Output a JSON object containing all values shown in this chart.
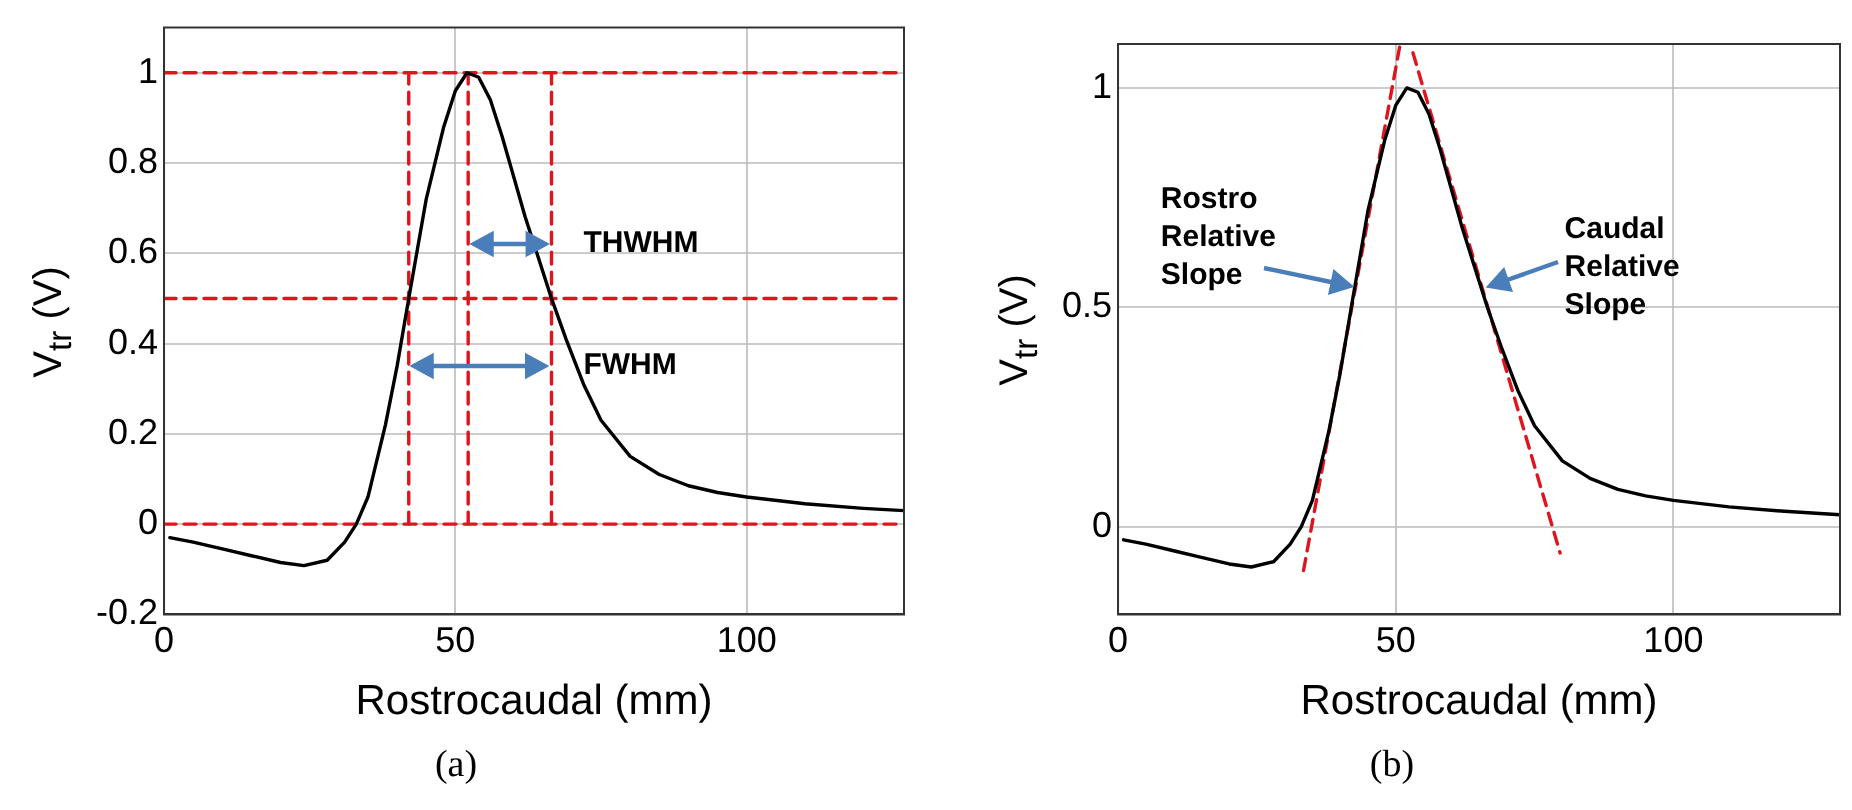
{
  "chart_data": [
    {
      "type": "line",
      "xlabel": "Rostrocaudal (mm)",
      "ylabel": "V$_{tr}$ (V)",
      "x": [
        1,
        5,
        10,
        15,
        20,
        24,
        28,
        31,
        33,
        35,
        38,
        40,
        42,
        45,
        48,
        50,
        52,
        54,
        56,
        58,
        60,
        62,
        64,
        66.5,
        69,
        72,
        75,
        80,
        85,
        90,
        95,
        100,
        110,
        120,
        127
      ],
      "series": [
        {
          "color": "#000000",
          "line_style": "solid",
          "values": [
            -0.03,
            -0.04,
            -0.055,
            -0.07,
            -0.085,
            -0.092,
            -0.08,
            -0.04,
            0.0,
            0.06,
            0.22,
            0.35,
            0.5,
            0.72,
            0.88,
            0.96,
            1.0,
            0.99,
            0.94,
            0.86,
            0.77,
            0.68,
            0.6,
            0.5,
            0.41,
            0.31,
            0.23,
            0.15,
            0.11,
            0.085,
            0.07,
            0.06,
            0.045,
            0.035,
            0.03
          ]
        },
        {
          "color": "#e0141e",
          "line_style": "dashed",
          "x": [
            42,
            42
          ],
          "values": [
            0,
            1
          ]
        },
        {
          "color": "#e0141e",
          "line_style": "dashed",
          "x": [
            52.2,
            52.2
          ],
          "values": [
            0,
            1
          ]
        },
        {
          "color": "#e0141e",
          "line_style": "dashed",
          "x": [
            66.5,
            66.5
          ],
          "values": [
            0,
            1
          ]
        },
        {
          "color": "#e0141e",
          "line_style": "dashed",
          "x": [
            0,
            127
          ],
          "values": [
            1,
            1
          ]
        },
        {
          "color": "#e0141e",
          "line_style": "dashed",
          "x": [
            0,
            127
          ],
          "values": [
            0.5,
            0.5
          ]
        },
        {
          "color": "#e0141e",
          "line_style": "dashed",
          "x": [
            0,
            127
          ],
          "values": [
            0,
            0
          ]
        }
      ],
      "annotations": [
        {
          "text": "THWHM",
          "x": 66.5,
          "y": 0.62
        },
        {
          "text": "FWHM",
          "x": 66.5,
          "y": 0.35
        },
        "(a)"
      ],
      "xlim": [
        0,
        127
      ],
      "xticks": [
        0,
        50,
        100
      ],
      "ylim": [
        -0.2,
        1.1
      ],
      "yticks": [
        -0.2,
        0,
        0.2,
        0.4,
        0.6,
        0.8,
        1
      ],
      "grid": true
    },
    {
      "type": "line",
      "xlabel": "Rostrocaudal (mm)",
      "ylabel": "V$_{tr}$ (V)",
      "x": [
        1,
        5,
        10,
        15,
        20,
        24,
        28,
        31,
        33,
        35,
        38,
        40,
        42,
        45,
        48,
        50,
        52,
        54,
        56,
        58,
        60,
        62,
        64,
        66.5,
        69,
        72,
        75,
        80,
        85,
        90,
        95,
        100,
        110,
        120,
        130
      ],
      "series": [
        {
          "color": "#000000",
          "line_style": "solid",
          "values": [
            -0.03,
            -0.04,
            -0.055,
            -0.07,
            -0.085,
            -0.092,
            -0.08,
            -0.04,
            0.0,
            0.06,
            0.22,
            0.35,
            0.5,
            0.72,
            0.88,
            0.96,
            1.0,
            0.99,
            0.94,
            0.86,
            0.77,
            0.68,
            0.6,
            0.5,
            0.41,
            0.31,
            0.23,
            0.15,
            0.11,
            0.085,
            0.07,
            0.06,
            0.045,
            0.035,
            0.027
          ]
        },
        {
          "color": "#e0141e",
          "line_style": "dashed",
          "x": [
            33.4,
            50.8
          ],
          "values": [
            -0.1,
            1.1
          ]
        },
        {
          "color": "#e0141e",
          "line_style": "dashed",
          "x": [
            53.1,
            79.6
          ],
          "values": [
            1.08,
            -0.06
          ]
        }
      ],
      "annotations": [
        {
          "text": "Rostro Relative Slope",
          "x": 43,
          "y": 0.55
        },
        {
          "text": "Caudal Relative Slope",
          "x": 66,
          "y": 0.55
        },
        "(b)"
      ],
      "xlim": [
        0,
        130
      ],
      "xticks": [
        0,
        50,
        100
      ],
      "ylim": [
        -0.2,
        1.1
      ],
      "yticks": [
        0,
        0.5,
        1
      ],
      "grid": true
    }
  ]
}
